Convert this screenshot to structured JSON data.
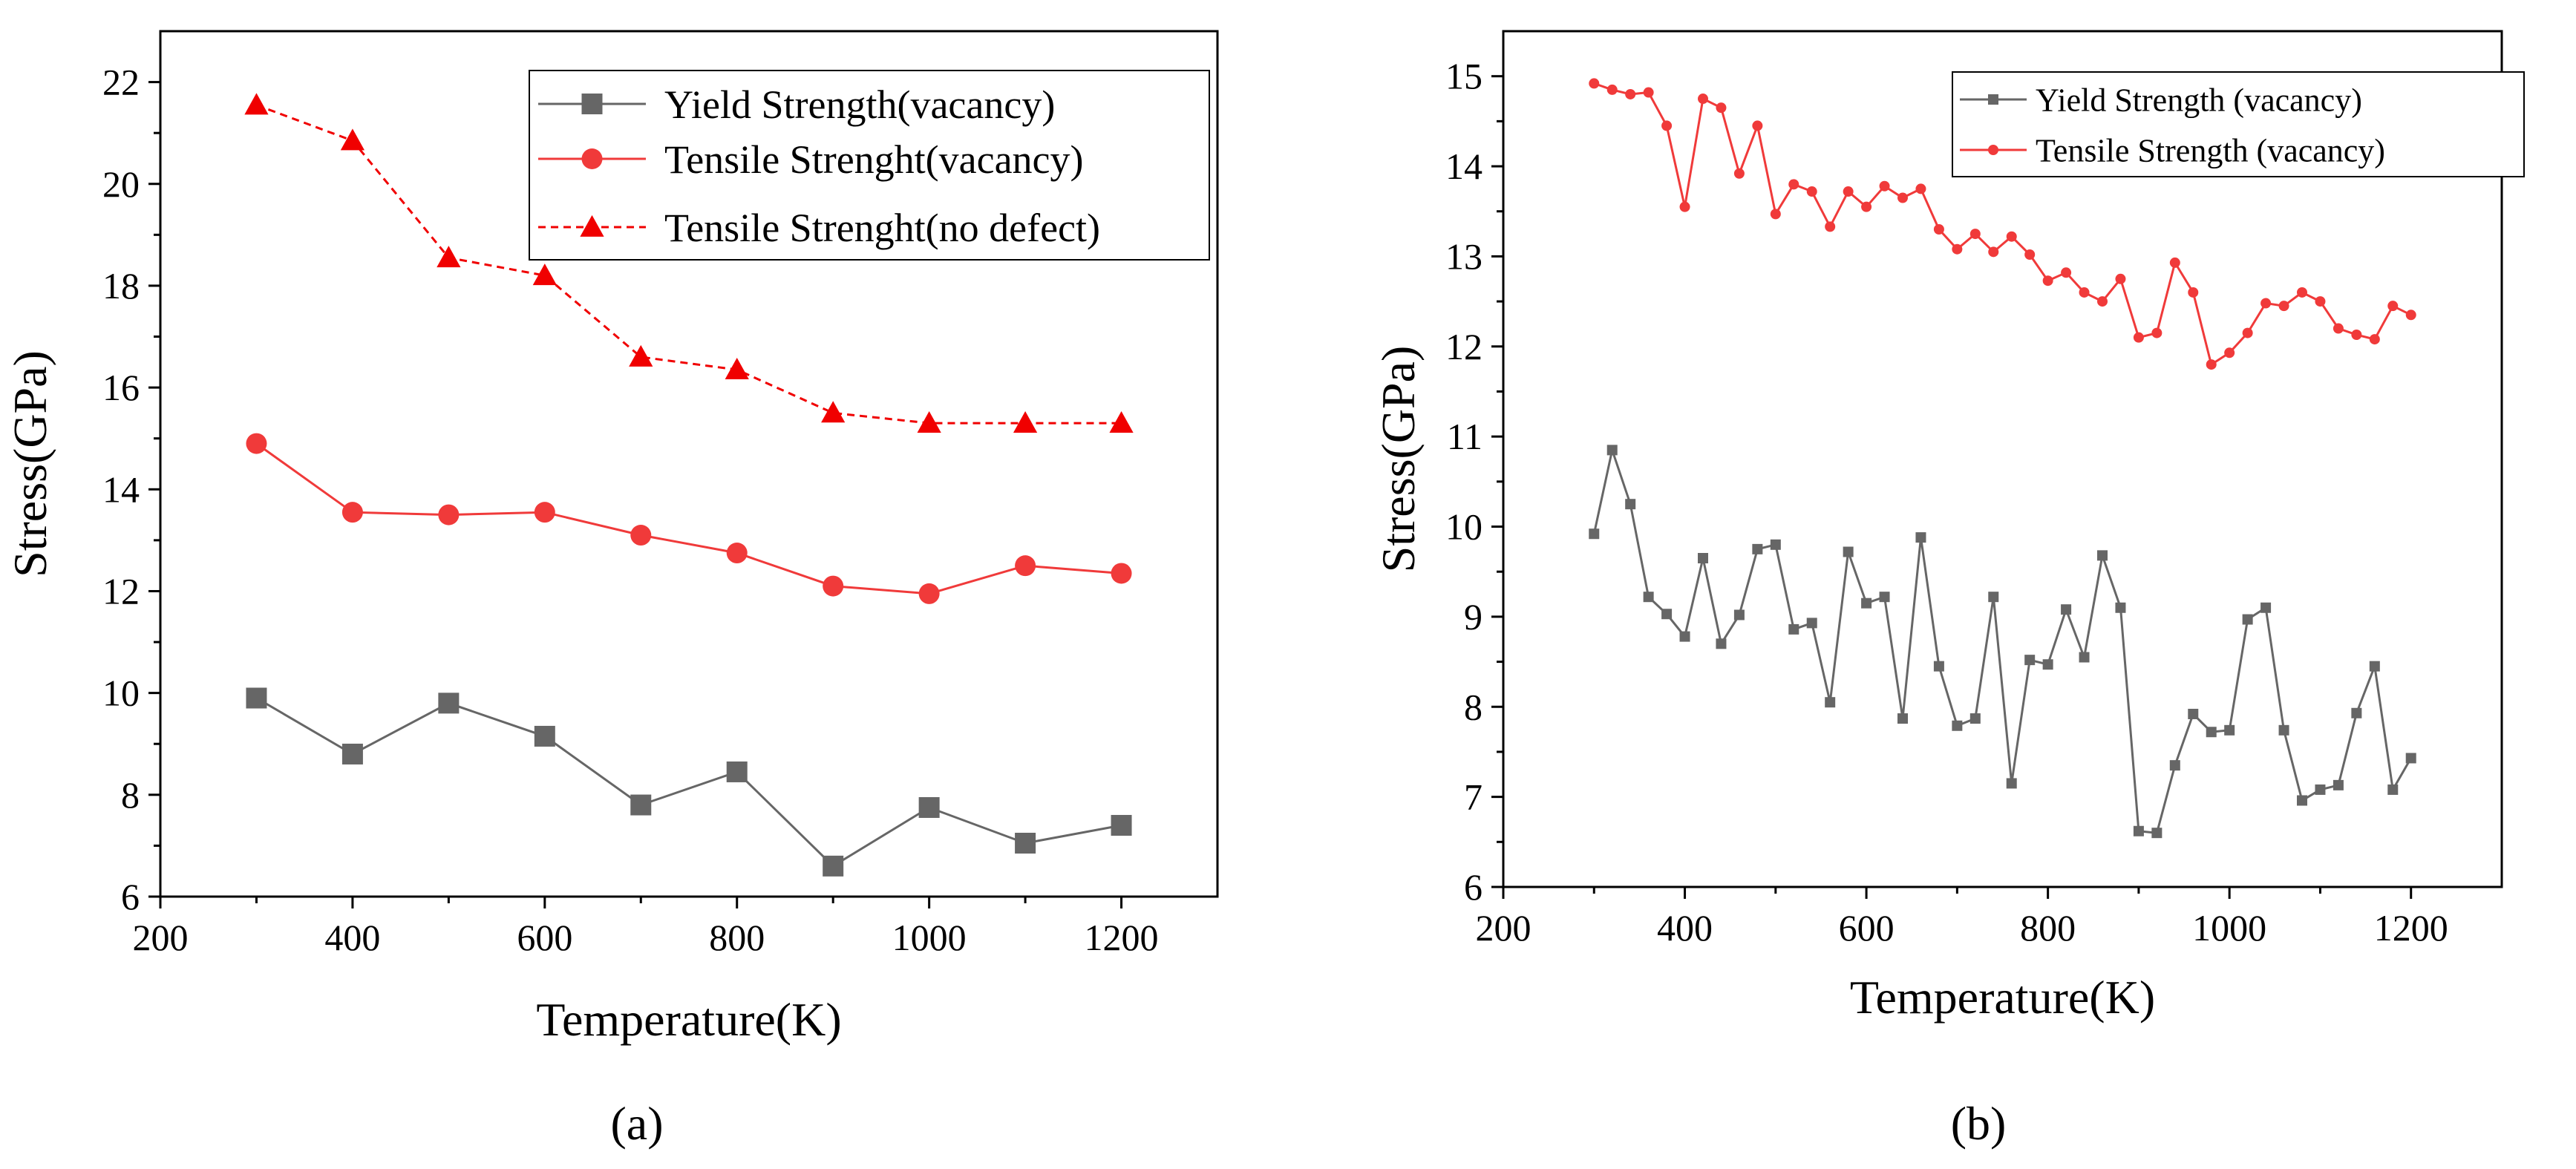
{
  "figure": {
    "panel_labels": [
      "(a)",
      "(b)"
    ]
  },
  "chart_data": [
    {
      "type": "line",
      "panel": "(a)",
      "title": "",
      "xlabel": "Temperature(K)",
      "ylabel": "Stress(GPa)",
      "xlim": [
        200,
        1300
      ],
      "ylim": [
        6,
        23
      ],
      "xticks": [
        200,
        400,
        600,
        800,
        1000,
        1200
      ],
      "yticks": [
        6,
        8,
        10,
        12,
        14,
        16,
        18,
        20,
        22
      ],
      "grid": false,
      "legend_position": "top-right",
      "series": [
        {
          "name": "Yield Strength(vacancy)",
          "color": "#666666",
          "marker": "square",
          "dash": "solid",
          "x": [
            300,
            400,
            500,
            600,
            700,
            800,
            900,
            1000,
            1100,
            1200
          ],
          "y": [
            9.9,
            8.8,
            9.8,
            9.15,
            7.8,
            8.45,
            6.6,
            7.75,
            7.05,
            7.4
          ]
        },
        {
          "name": "Tensile Strenght(vacancy)",
          "color": "#f03a3a",
          "marker": "circle",
          "dash": "solid",
          "x": [
            300,
            400,
            500,
            600,
            700,
            800,
            900,
            1000,
            1100,
            1200
          ],
          "y": [
            14.9,
            13.55,
            13.5,
            13.55,
            13.1,
            12.75,
            12.1,
            11.95,
            12.5,
            12.35
          ]
        },
        {
          "name": "Tensile Strenght(no defect)",
          "color": "#f00000",
          "marker": "triangle",
          "dash": "dashed",
          "x": [
            300,
            400,
            500,
            600,
            700,
            800,
            900,
            1000,
            1100,
            1200
          ],
          "y": [
            21.55,
            20.85,
            18.55,
            18.2,
            16.6,
            16.35,
            15.5,
            15.3,
            15.3,
            15.3
          ]
        }
      ]
    },
    {
      "type": "line",
      "panel": "(b)",
      "title": "",
      "xlabel": "Temperature(K)",
      "ylabel": "Stress(GPa)",
      "xlim": [
        200,
        1300
      ],
      "ylim": [
        6,
        15.5
      ],
      "xticks": [
        200,
        400,
        600,
        800,
        1000,
        1200
      ],
      "yticks": [
        6,
        7,
        8,
        9,
        10,
        11,
        12,
        13,
        14,
        15
      ],
      "grid": false,
      "legend_position": "top-right",
      "series": [
        {
          "name": "Yield Strength (vacancy)",
          "color": "#666666",
          "marker": "square",
          "dash": "solid",
          "x": [
            300,
            320,
            340,
            360,
            380,
            400,
            420,
            440,
            460,
            480,
            500,
            520,
            540,
            560,
            580,
            600,
            620,
            640,
            660,
            680,
            700,
            720,
            740,
            760,
            780,
            800,
            820,
            840,
            860,
            880,
            900,
            920,
            940,
            960,
            980,
            1000,
            1020,
            1040,
            1060,
            1080,
            1100,
            1120,
            1140,
            1160,
            1180,
            1200
          ],
          "y": [
            9.92,
            10.85,
            10.25,
            9.22,
            9.03,
            8.78,
            9.65,
            8.7,
            9.02,
            9.75,
            9.8,
            8.86,
            8.93,
            8.05,
            9.72,
            9.15,
            9.22,
            7.87,
            9.88,
            8.45,
            7.79,
            7.87,
            9.22,
            7.15,
            8.52,
            8.47,
            9.08,
            8.55,
            9.68,
            9.1,
            6.62,
            6.6,
            7.35,
            7.92,
            7.72,
            7.74,
            8.97,
            9.1,
            7.74,
            6.96,
            7.08,
            7.13,
            7.93,
            8.45,
            7.08,
            7.43
          ]
        },
        {
          "name": "Tensile Strength (vacancy)",
          "color": "#f03a3a",
          "marker": "circle",
          "dash": "solid",
          "x": [
            300,
            320,
            340,
            360,
            380,
            400,
            420,
            440,
            460,
            480,
            500,
            520,
            540,
            560,
            580,
            600,
            620,
            640,
            660,
            680,
            700,
            720,
            740,
            760,
            780,
            800,
            820,
            840,
            860,
            880,
            900,
            920,
            940,
            960,
            980,
            1000,
            1020,
            1040,
            1060,
            1080,
            1100,
            1120,
            1140,
            1160,
            1180,
            1200
          ],
          "y": [
            14.92,
            14.85,
            14.8,
            14.82,
            14.45,
            13.55,
            14.75,
            14.65,
            13.92,
            14.45,
            13.47,
            13.8,
            13.72,
            13.33,
            13.72,
            13.55,
            13.78,
            13.65,
            13.75,
            13.3,
            13.08,
            13.25,
            13.05,
            13.22,
            13.02,
            12.73,
            12.82,
            12.6,
            12.5,
            12.75,
            12.1,
            12.15,
            12.93,
            12.6,
            11.8,
            11.93,
            12.15,
            12.48,
            12.45,
            12.6,
            12.5,
            12.2,
            12.13,
            12.08,
            12.45,
            12.35
          ]
        }
      ]
    }
  ]
}
